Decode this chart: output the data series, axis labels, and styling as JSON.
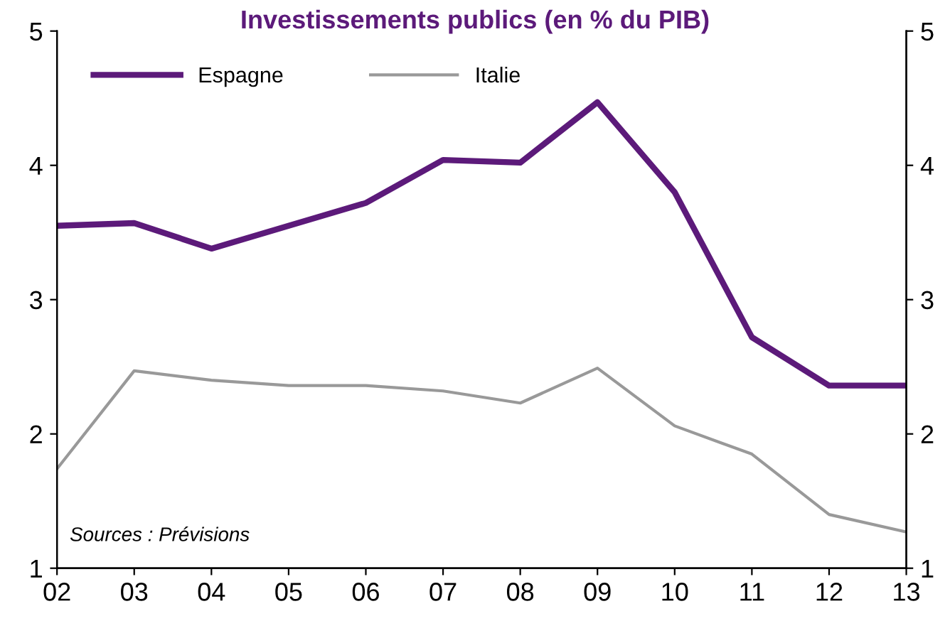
{
  "chart_data": {
    "type": "line",
    "title": "Investissements publics (en % du PIB)",
    "categories": [
      "02",
      "03",
      "04",
      "05",
      "06",
      "07",
      "08",
      "09",
      "10",
      "11",
      "12",
      "13"
    ],
    "series": [
      {
        "name": "Espagne",
        "color": "#5c1a7a",
        "values": [
          3.55,
          3.57,
          3.38,
          3.55,
          3.72,
          4.04,
          4.02,
          4.47,
          3.8,
          2.72,
          2.36,
          2.36
        ]
      },
      {
        "name": "Italie",
        "color": "#999999",
        "values": [
          1.74,
          2.47,
          2.4,
          2.36,
          2.36,
          2.32,
          2.23,
          2.49,
          2.06,
          1.85,
          1.4,
          1.27
        ]
      }
    ],
    "ylim": [
      1,
      5
    ],
    "yticks": [
      1,
      2,
      3,
      4,
      5
    ],
    "y2lim": [
      1,
      5
    ],
    "y2ticks": [
      1,
      2,
      3,
      4,
      5
    ],
    "grid": false,
    "legend": "top left",
    "marker": "none",
    "line_style": "solid",
    "annotations": [
      "Sources : Prévisions"
    ]
  }
}
